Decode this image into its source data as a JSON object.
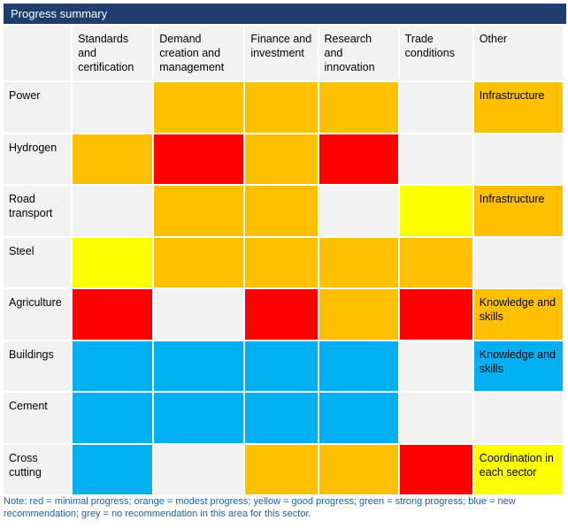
{
  "title": "Progress summary",
  "colors": {
    "red": "#ff0000",
    "orange": "#ffc000",
    "yellow": "#ffff00",
    "green": "#00b050",
    "blue": "#00b0f0",
    "grey": "#f2f2f2",
    "header_bar": "#1f3e6e",
    "note_text": "#1f5fa8"
  },
  "columns": [
    "",
    "Standards and certification",
    "Demand creation and management",
    "Finance and investment",
    "Research and innovation",
    "Trade conditions",
    "Other"
  ],
  "rows": [
    {
      "sector": "Power",
      "cells": [
        "grey",
        "orange",
        "orange",
        "orange",
        "grey",
        "orange"
      ],
      "other_text": "Infrastructure"
    },
    {
      "sector": "Hydrogen",
      "cells": [
        "orange",
        "red",
        "orange",
        "red",
        "grey",
        "grey"
      ],
      "other_text": ""
    },
    {
      "sector": "Road transport",
      "cells": [
        "grey",
        "orange",
        "orange",
        "grey",
        "yellow",
        "orange"
      ],
      "other_text": "Infrastructure"
    },
    {
      "sector": "Steel",
      "cells": [
        "yellow",
        "orange",
        "orange",
        "orange",
        "orange",
        "grey"
      ],
      "other_text": ""
    },
    {
      "sector": "Agriculture",
      "cells": [
        "red",
        "grey",
        "red",
        "orange",
        "red",
        "orange"
      ],
      "other_text": "Knowledge and skills"
    },
    {
      "sector": "Buildings",
      "cells": [
        "blue",
        "blue",
        "blue",
        "blue",
        "grey",
        "blue"
      ],
      "other_text": "Knowledge and skills"
    },
    {
      "sector": "Cement",
      "cells": [
        "blue",
        "blue",
        "blue",
        "blue",
        "grey",
        "grey"
      ],
      "other_text": ""
    },
    {
      "sector": "Cross cutting",
      "cells": [
        "blue",
        "grey",
        "orange",
        "orange",
        "red",
        "yellow"
      ],
      "other_text": "Coordination in each sector"
    }
  ],
  "note": "Note: red = minimal progress; orange = modest progress; yellow = good progress; green = strong progress; blue = new recommendation; grey = no recommendation in this area for this sector."
}
